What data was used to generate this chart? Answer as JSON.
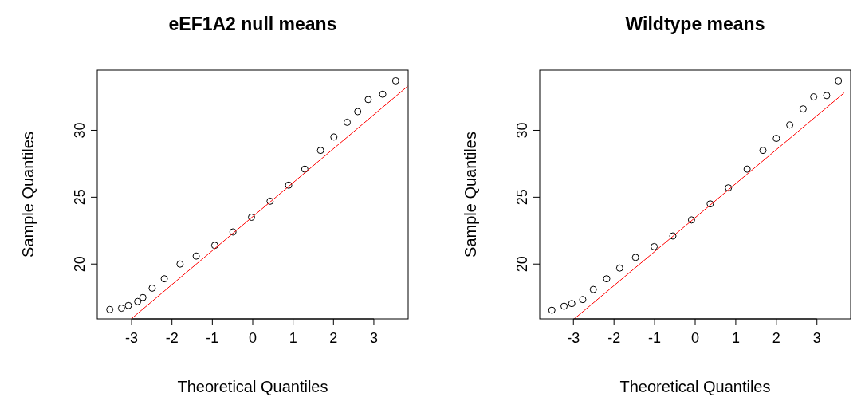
{
  "chart_data": [
    {
      "type": "scatter",
      "title": "eEF1A2 null means",
      "xlabel": "Theoretical Quantiles",
      "ylabel": "Sample Quantiles",
      "xlim": [
        -3.85,
        3.85
      ],
      "ylim": [
        15.9,
        34.5
      ],
      "xticks": [
        -3,
        -2,
        -1,
        0,
        1,
        2,
        3
      ],
      "yticks": [
        20,
        25,
        30
      ],
      "marker": "circle",
      "series": [
        {
          "color": "#000000",
          "x": [
            -3.54,
            -3.25,
            -3.08,
            -2.85,
            -2.72,
            -2.49,
            -2.19,
            -1.8,
            -1.4,
            -0.94,
            -0.49,
            -0.03,
            0.43,
            0.89,
            1.29,
            1.68,
            2.01,
            2.34,
            2.6,
            2.86,
            3.22,
            3.54
          ],
          "values": [
            16.6,
            16.7,
            16.9,
            17.2,
            17.5,
            18.2,
            18.9,
            20.0,
            20.6,
            21.4,
            22.4,
            23.5,
            24.7,
            25.9,
            27.1,
            28.5,
            29.5,
            30.6,
            31.4,
            32.3,
            32.7,
            33.7
          ]
        },
        {
          "type": "line",
          "marker": "none",
          "color": "#ff0000",
          "x": [
            -3.01,
            3.84
          ],
          "values": [
            15.9,
            33.3
          ]
        }
      ]
    },
    {
      "type": "scatter",
      "title": "Wildtype means",
      "xlabel": "Theoretical Quantiles",
      "ylabel": "Sample Quantiles",
      "xlim": [
        -3.83,
        3.83
      ],
      "ylim": [
        15.9,
        34.5
      ],
      "xticks": [
        -3,
        -2,
        -1,
        0,
        1,
        2,
        3
      ],
      "yticks": [
        20,
        25,
        30
      ],
      "marker": "circle",
      "series": [
        {
          "color": "#000000",
          "x": [
            -3.53,
            -3.23,
            -3.04,
            -2.77,
            -2.51,
            -2.18,
            -1.86,
            -1.47,
            -1.01,
            -0.55,
            -0.09,
            0.37,
            0.82,
            1.28,
            1.67,
            2.0,
            2.33,
            2.66,
            2.92,
            3.24,
            3.53
          ],
          "values": [
            16.55,
            16.85,
            17.05,
            17.35,
            18.1,
            18.9,
            19.7,
            20.5,
            21.3,
            22.1,
            23.3,
            24.5,
            25.7,
            27.1,
            28.5,
            29.4,
            30.4,
            31.6,
            32.5,
            32.6,
            33.7
          ]
        },
        {
          "type": "line",
          "marker": "none",
          "color": "#ff0000",
          "x": [
            -2.98,
            3.67
          ],
          "values": [
            15.9,
            32.8
          ]
        }
      ]
    }
  ]
}
